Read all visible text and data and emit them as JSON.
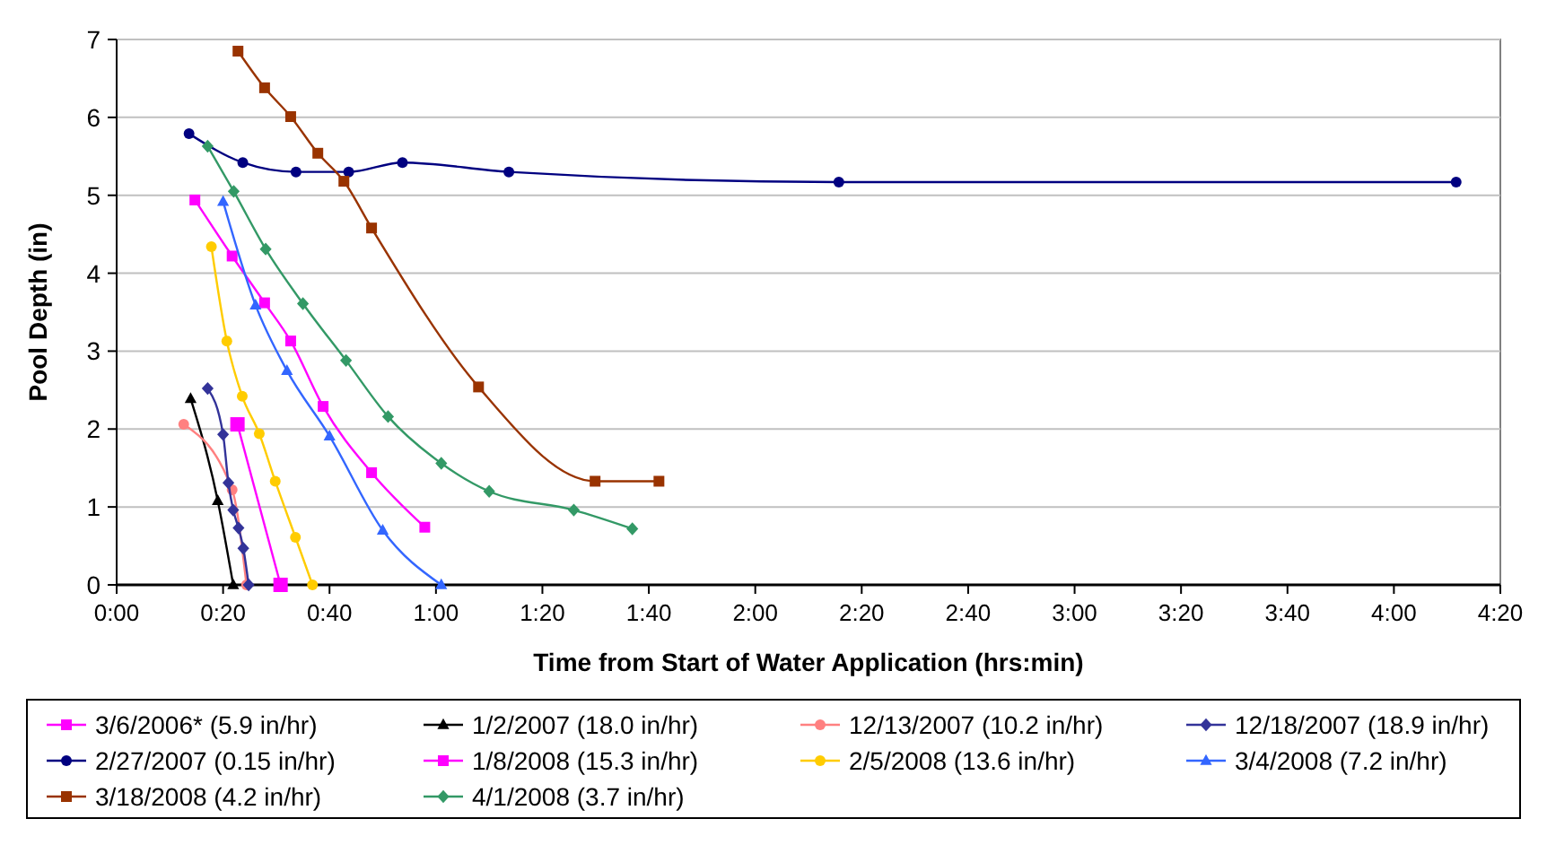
{
  "chart_data": {
    "type": "line",
    "xlabel": "Time from Start of Water Application (hrs:min)",
    "ylabel": "Pool Depth (in)",
    "xlim": [
      0,
      260
    ],
    "xticks": [
      {
        "value": 0,
        "label": "0:00"
      },
      {
        "value": 20,
        "label": "0:20"
      },
      {
        "value": 40,
        "label": "0:40"
      },
      {
        "value": 60,
        "label": "1:00"
      },
      {
        "value": 80,
        "label": "1:20"
      },
      {
        "value": 100,
        "label": "1:40"
      },
      {
        "value": 120,
        "label": "2:00"
      },
      {
        "value": 140,
        "label": "2:20"
      },
      {
        "value": 160,
        "label": "2:40"
      },
      {
        "value": 180,
        "label": "3:00"
      },
      {
        "value": 200,
        "label": "3:20"
      },
      {
        "value": 220,
        "label": "3:40"
      },
      {
        "value": 240,
        "label": "4:00"
      },
      {
        "value": 260,
        "label": "4:20"
      }
    ],
    "ylim": [
      0,
      7
    ],
    "yticks": [
      0,
      1,
      2,
      3,
      4,
      5,
      6,
      7
    ],
    "grid": "y",
    "legend": "bottom",
    "line_style": "solid",
    "series": [
      {
        "name": "3/6/2006* (5.9 in/hr)",
        "color": "#ff00ff",
        "marker": "square",
        "x": [
          14.7,
          21.7,
          27.8,
          32.7,
          38.8,
          47.9,
          57.9
        ],
        "values": [
          4.94,
          4.22,
          3.62,
          3.13,
          2.29,
          1.44,
          0.74
        ]
      },
      {
        "name": "1/2/2007 (18.0 in/hr)",
        "color": "#000000",
        "marker": "triangle",
        "x": [
          13.9,
          19.0,
          21.9
        ],
        "values": [
          2.39,
          1.08,
          0
        ]
      },
      {
        "name": "12/13/2007 (10.2 in/hr)",
        "color": "#ff8080",
        "marker": "circle",
        "x": [
          12.6,
          21.7,
          24.4
        ],
        "values": [
          2.06,
          1.22,
          0
        ]
      },
      {
        "name": "12/18/2007 (18.9 in/hr)",
        "color": "#333399",
        "marker": "diamond",
        "x": [
          17.1,
          20.0,
          21.0,
          21.9,
          22.9,
          23.8,
          24.8
        ],
        "values": [
          2.52,
          1.93,
          1.31,
          0.96,
          0.73,
          0.47,
          0
        ]
      },
      {
        "name": "2/27/2007 (0.15 in/hr)",
        "color": "#000080",
        "marker": "circle",
        "x": [
          13.6,
          23.7,
          33.7,
          43.6,
          53.7,
          73.7,
          135.7,
          251.7
        ],
        "values": [
          5.79,
          5.42,
          5.3,
          5.3,
          5.42,
          5.3,
          5.17,
          5.17
        ]
      },
      {
        "name": "1/8/2008 (15.3 in/hr)",
        "color": "#ff00ff",
        "marker": "square",
        "x": [
          22.7,
          30.8
        ],
        "values": [
          2.06,
          0
        ]
      },
      {
        "name": "2/5/2008 (13.6 in/hr)",
        "color": "#ffcc00",
        "marker": "circle",
        "x": [
          17.8,
          20.7,
          23.6,
          26.8,
          29.8,
          33.6,
          36.8
        ],
        "values": [
          4.34,
          3.13,
          2.42,
          1.94,
          1.33,
          0.61,
          0
        ]
      },
      {
        "name": "3/4/2008 (7.2 in/hr)",
        "color": "#3366ff",
        "marker": "triangle",
        "x": [
          20.0,
          26.1,
          32.0,
          40.0,
          50.0,
          61.0
        ],
        "values": [
          4.92,
          3.59,
          2.75,
          1.91,
          0.7,
          0
        ]
      },
      {
        "name": "3/18/2008 (4.2 in/hr)",
        "color": "#993300",
        "marker": "square",
        "x": [
          22.8,
          27.8,
          32.7,
          37.8,
          42.7,
          47.9,
          68.0,
          89.9,
          101.9
        ],
        "values": [
          6.85,
          6.38,
          6.01,
          5.54,
          5.18,
          4.58,
          2.54,
          1.33,
          1.33
        ]
      },
      {
        "name": "4/1/2008 (3.7 in/hr)",
        "color": "#339966",
        "marker": "diamond",
        "x": [
          17.1,
          22.0,
          28.0,
          35.0,
          43.1,
          51.0,
          61.0,
          70.0,
          85.9,
          96.9
        ],
        "values": [
          5.63,
          5.05,
          4.31,
          3.61,
          2.88,
          2.16,
          1.56,
          1.2,
          0.96,
          0.72
        ]
      }
    ]
  }
}
